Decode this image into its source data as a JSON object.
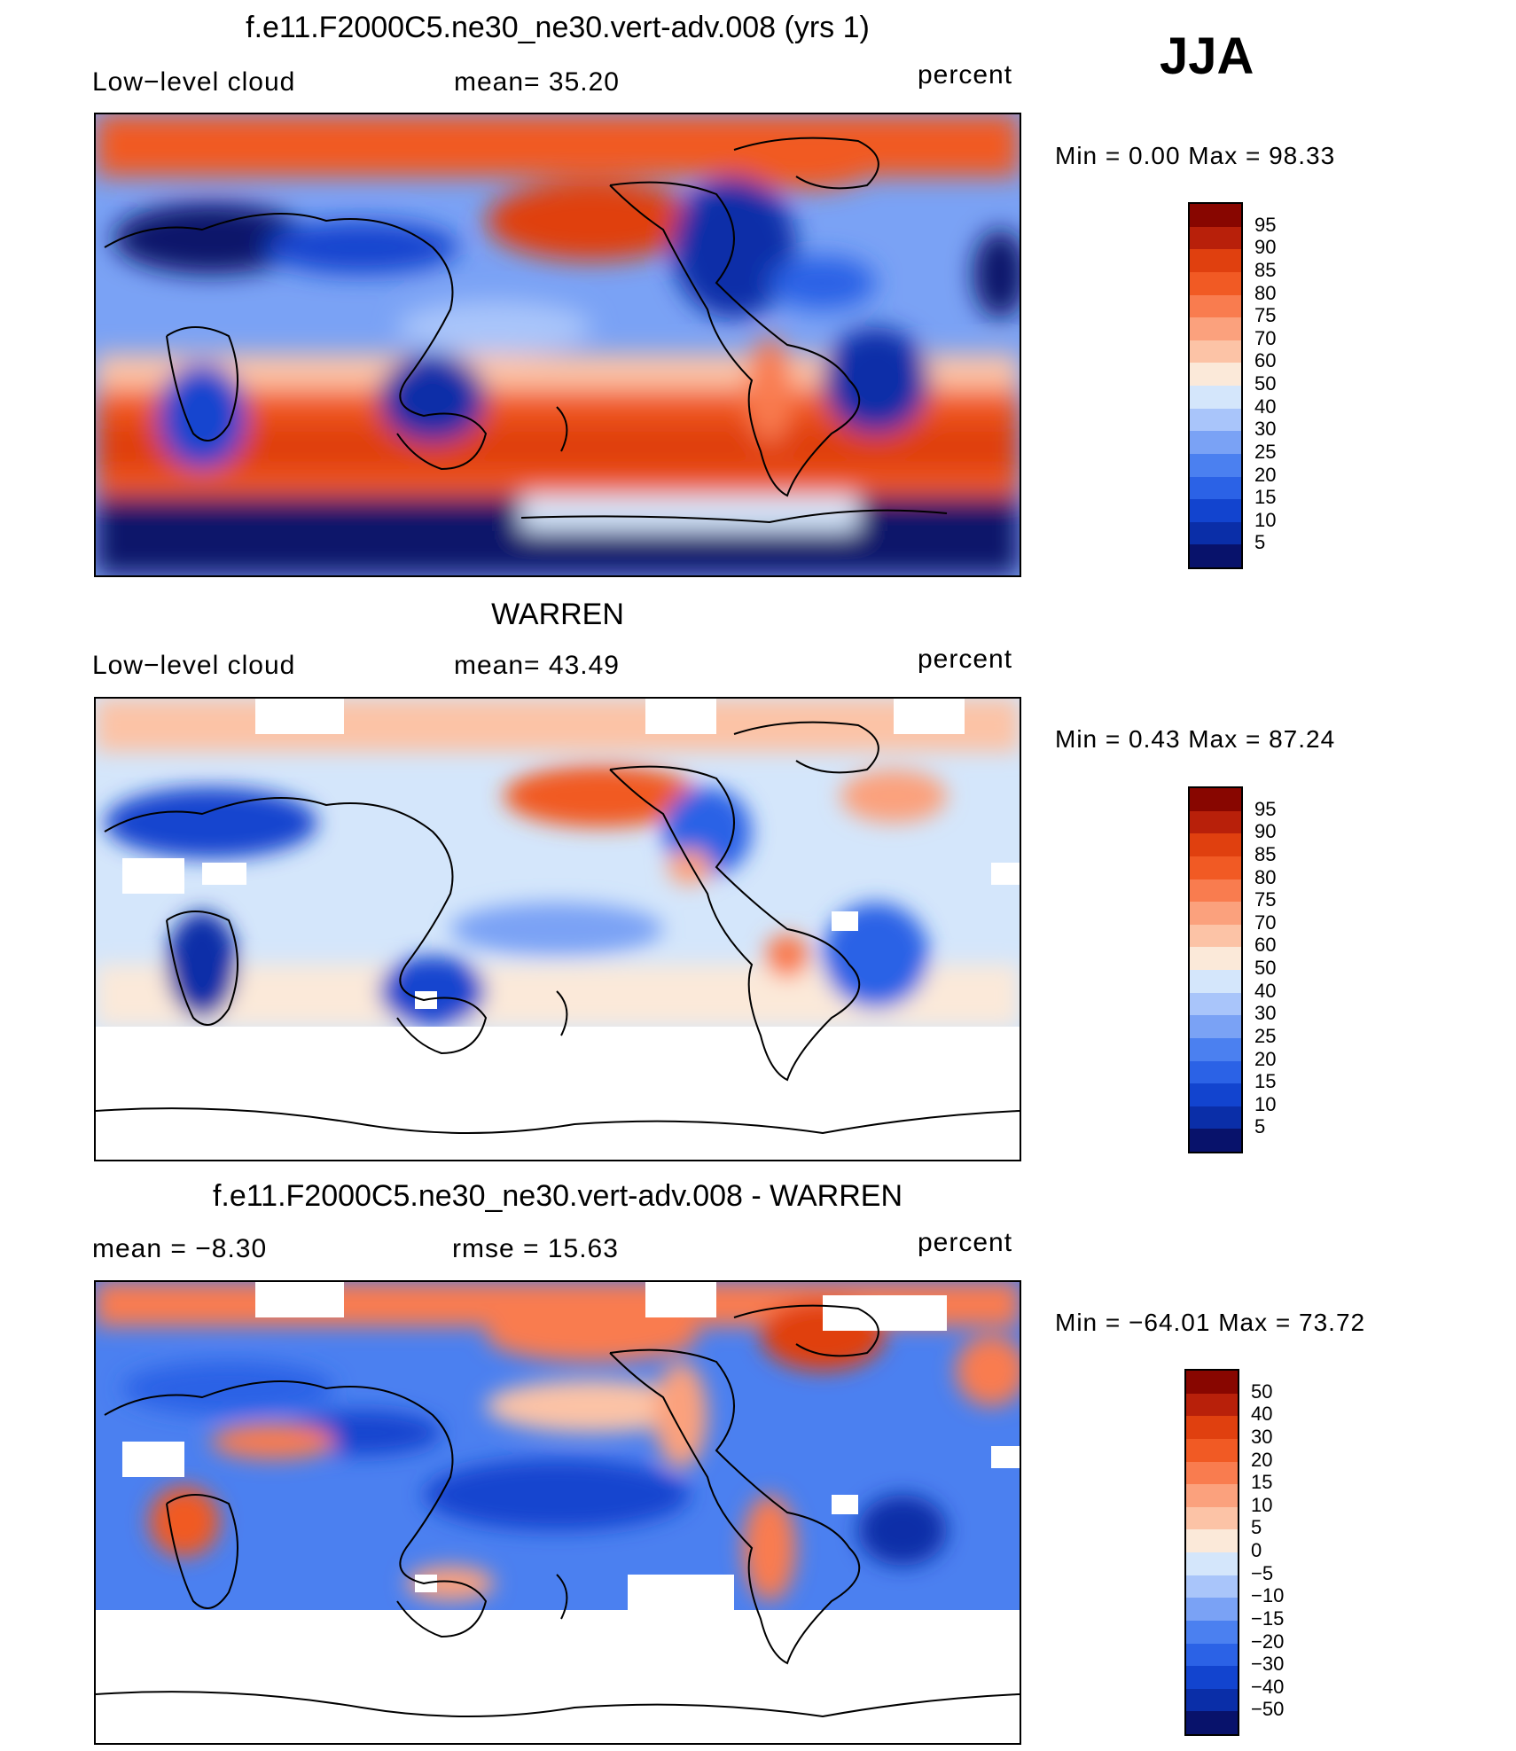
{
  "season": "JJA",
  "colors": {
    "lowcloud": [
      "#08126b",
      "#0a2ea8",
      "#1244cf",
      "#2b62e6",
      "#4b80f0",
      "#7aa2f5",
      "#a9c5fa",
      "#d4e6fb",
      "#fbe9d9",
      "#fcc3a6",
      "#fba17d",
      "#f97c4f",
      "#f15a24",
      "#e0400f",
      "#b8200a",
      "#880600"
    ],
    "diff": [
      "#08126b",
      "#0a2ea8",
      "#1244cf",
      "#2b62e6",
      "#4b80f0",
      "#7aa2f5",
      "#a9c5fa",
      "#d4e6fb",
      "#fbe9d9",
      "#fcc3a6",
      "#fba17d",
      "#f97c4f",
      "#f15a24",
      "#e0400f",
      "#b8200a",
      "#880600"
    ]
  },
  "panels": [
    {
      "title": "f.e11.F2000C5.ne30_ne30.vert-adv.008 (yrs 1)",
      "left_label": "Low−level cloud",
      "mid_label": "mean=   35.20",
      "right_label": "percent",
      "minmax": "Min  =     0.00  Max  =    98.33",
      "colorbar_ticks": [
        "95",
        "90",
        "85",
        "80",
        "75",
        "70",
        "60",
        "50",
        "40",
        "30",
        "25",
        "20",
        "15",
        "10",
        "5"
      ]
    },
    {
      "title": "WARREN",
      "left_label": "Low−level cloud",
      "mid_label": "mean=   43.49",
      "right_label": "percent",
      "minmax": "Min  =     0.43  Max  =    87.24",
      "colorbar_ticks": [
        "95",
        "90",
        "85",
        "80",
        "75",
        "70",
        "60",
        "50",
        "40",
        "30",
        "25",
        "20",
        "15",
        "10",
        "5"
      ]
    },
    {
      "title": "f.e11.F2000C5.ne30_ne30.vert-adv.008 - WARREN",
      "left_label": "mean  =    −8.30",
      "mid_label": "rmse  =    15.63",
      "right_label": "percent",
      "minmax": "Min  =  −64.01  Max  =    73.72",
      "colorbar_ticks": [
        "50",
        "40",
        "30",
        "20",
        "15",
        "10",
        "5",
        "0",
        "−5",
        "−10",
        "−15",
        "−20",
        "−30",
        "−40",
        "−50"
      ]
    }
  ]
}
